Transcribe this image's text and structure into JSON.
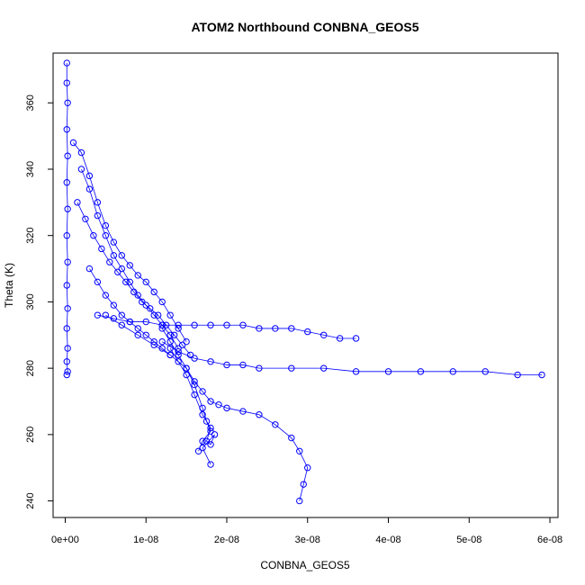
{
  "chart_data": {
    "type": "scatter",
    "title": "ATOM2 Northbound CONBNA_GEOS5",
    "xlabel": "CONBNA_GEOS5",
    "ylabel": "Theta (K)",
    "xlim": [
      -1.5e-09,
      6.1e-08
    ],
    "ylim": [
      235,
      375
    ],
    "x_ticks": [
      0,
      1e-08,
      2e-08,
      3e-08,
      4e-08,
      5e-08,
      6e-08
    ],
    "x_tick_labels": [
      "0e+00",
      "1e-08",
      "2e-08",
      "3e-08",
      "4e-08",
      "5e-08",
      "6e-08"
    ],
    "y_ticks": [
      240,
      260,
      280,
      300,
      320,
      340,
      360
    ],
    "y_tick_labels": [
      "240",
      "260",
      "280",
      "300",
      "320",
      "340",
      "360"
    ],
    "grid": false,
    "legend": "none",
    "marker": "open-circle",
    "connected": true,
    "color": "#0000ff",
    "series": [
      {
        "x": [
          2e-10,
          2e-10,
          3e-10,
          2e-10,
          3e-10,
          2e-10,
          3e-10,
          2e-10,
          3e-10,
          2e-10,
          3e-10,
          2e-10,
          3e-10,
          2e-10,
          3e-10,
          2e-10
        ],
        "y": [
          372,
          366,
          360,
          352,
          344,
          336,
          328,
          320,
          312,
          305,
          298,
          292,
          286,
          282,
          279,
          278
        ]
      },
      {
        "x": [
          1e-09,
          2e-09,
          3e-09,
          4e-09,
          5e-09,
          6e-09,
          7e-09,
          8e-09,
          9e-09,
          1e-08,
          1.1e-08,
          1.2e-08,
          1.3e-08,
          1.4e-08,
          1.5e-08
        ],
        "y": [
          348,
          345,
          338,
          330,
          323,
          318,
          314,
          311,
          308,
          306,
          303,
          300,
          296,
          292,
          288
        ]
      },
      {
        "x": [
          2e-09,
          3e-09,
          4e-09,
          5e-09,
          6e-09,
          7e-09,
          8e-09,
          9e-09,
          1e-08,
          1.1e-08,
          1.2e-08,
          1.3e-08,
          1.4e-08
        ],
        "y": [
          340,
          334,
          326,
          320,
          314,
          310,
          306,
          302,
          299,
          296,
          293,
          290,
          286
        ]
      },
      {
        "x": [
          1.5e-09,
          2.5e-09,
          3.5e-09,
          4.5e-09,
          5.5e-09,
          6.5e-09,
          7.5e-09,
          8.5e-09,
          9.5e-09,
          1.05e-08,
          1.15e-08,
          1.25e-08,
          1.35e-08,
          1.45e-08,
          1.55e-08
        ],
        "y": [
          330,
          325,
          320,
          316,
          312,
          309,
          306,
          303,
          300,
          298,
          296,
          293,
          290,
          287,
          284
        ]
      },
      {
        "x": [
          4e-09,
          6e-09,
          8e-09,
          1e-08,
          1.2e-08,
          1.4e-08,
          1.6e-08,
          1.8e-08,
          2e-08,
          2.2e-08,
          2.4e-08,
          2.6e-08,
          2.8e-08,
          3e-08,
          3.2e-08,
          3.4e-08,
          3.6e-08
        ],
        "y": [
          296,
          295,
          294,
          294,
          293,
          293,
          293,
          293,
          293,
          293,
          292,
          292,
          292,
          291,
          290,
          289,
          289
        ]
      },
      {
        "x": [
          1.2e-08,
          1.4e-08,
          1.6e-08,
          1.8e-08,
          2e-08,
          2.2e-08,
          2.4e-08,
          2.8e-08,
          3.2e-08,
          3.6e-08,
          4e-08,
          4.4e-08,
          4.8e-08,
          5.2e-08,
          5.6e-08,
          5.9e-08
        ],
        "y": [
          288,
          285,
          283,
          282,
          281,
          281,
          280,
          280,
          280,
          279,
          279,
          279,
          279,
          279,
          278,
          278
        ]
      },
      {
        "x": [
          1.2e-08,
          1.3e-08,
          1.4e-08,
          1.5e-08,
          1.6e-08,
          1.7e-08,
          1.8e-08,
          1.9e-08,
          2e-08,
          2.2e-08,
          2.4e-08,
          2.6e-08,
          2.8e-08,
          2.9e-08,
          3e-08,
          2.95e-08,
          2.9e-08
        ],
        "y": [
          292,
          288,
          284,
          280,
          276,
          273,
          270,
          269,
          268,
          267,
          266,
          263,
          259,
          255,
          250,
          245,
          240
        ]
      },
      {
        "x": [
          1.3e-08,
          1.4e-08,
          1.5e-08,
          1.6e-08,
          1.7e-08,
          1.8e-08,
          1.75e-08,
          1.8e-08,
          1.85e-08,
          1.7e-08,
          1.8e-08
        ],
        "y": [
          286,
          282,
          278,
          272,
          266,
          262,
          258,
          257,
          260,
          256,
          251
        ]
      },
      {
        "x": [
          5e-09,
          7e-09,
          9e-09,
          1.1e-08,
          1.3e-08,
          1.5e-08,
          1.6e-08,
          1.7e-08,
          1.75e-08,
          1.8e-08,
          1.7e-08,
          1.65e-08
        ],
        "y": [
          296,
          293,
          290,
          287,
          284,
          280,
          275,
          268,
          264,
          261,
          258,
          255
        ]
      },
      {
        "x": [
          3e-09,
          4e-09,
          5e-09,
          6e-09,
          7e-09,
          8e-09,
          9e-09,
          1e-08,
          1.1e-08,
          1.2e-08,
          1.3e-08
        ],
        "y": [
          310,
          306,
          302,
          299,
          296,
          294,
          292,
          290,
          288,
          286,
          284
        ]
      }
    ]
  }
}
